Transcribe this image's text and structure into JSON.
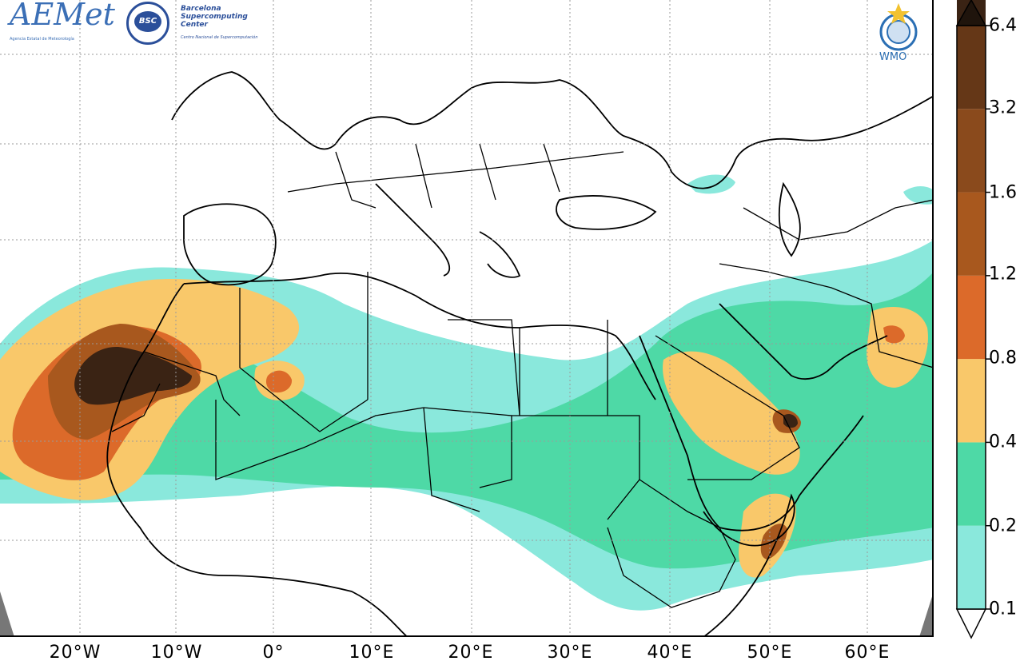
{
  "map": {
    "longitude_labels": [
      "20°W",
      "10°W",
      "0°",
      "10°E",
      "20°E",
      "30°E",
      "40°E",
      "50°E",
      "60°E"
    ],
    "colors": {
      "land_outline": "#000000",
      "gridlines": "#9a9a9a",
      "no_data_corner": "#777777"
    }
  },
  "colorbar": {
    "labels": [
      "0.1",
      "0.2",
      "0.4",
      "0.8",
      "1.2",
      "1.6",
      "3.2",
      "6.4"
    ],
    "colors": [
      "#8ae8dc",
      "#4ed9a6",
      "#f9c86a",
      "#dc6a2a",
      "#a8581e",
      "#8a4a1c",
      "#653717",
      "#3a2314",
      "#1f140c"
    ],
    "extends": "both"
  },
  "logos": {
    "aemet": {
      "name": "AEMet",
      "subtitle": "Agencia Estatal de Meteorología"
    },
    "bsc": {
      "badge": "BSC",
      "name_lines": [
        "Barcelona",
        "Supercomputing",
        "Center"
      ],
      "subtitle": "Centro Nacional de Supercomputación"
    },
    "wmo": {
      "name": "WMO"
    }
  }
}
